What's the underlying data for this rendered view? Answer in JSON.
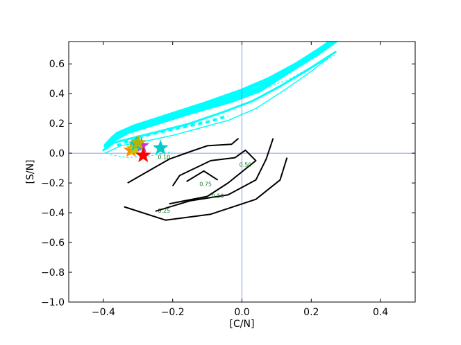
{
  "chart_data": {
    "type": "line",
    "title": "",
    "xlabel": "[C/N]",
    "ylabel": "[S/N]",
    "xlim": [
      -0.5,
      0.5
    ],
    "ylim": [
      -1.0,
      0.75
    ],
    "xticks": [
      -0.4,
      -0.2,
      0.0,
      0.2,
      0.4
    ],
    "xtick_labels": [
      "−0.4",
      "−0.2",
      "0.0",
      "0.2",
      "0.4"
    ],
    "yticks": [
      -1.0,
      -0.8,
      -0.6,
      -0.4,
      -0.2,
      0.0,
      0.2,
      0.4,
      0.6
    ],
    "ytick_labels": [
      "−1.0",
      "−0.8",
      "−0.6",
      "−0.4",
      "−0.2",
      "0.0",
      "0.2",
      "0.4",
      "0.6"
    ],
    "grid": false,
    "reference_lines": {
      "x": 0.0,
      "y": 0.0,
      "color": "#5b7cf0"
    },
    "contours": [
      {
        "level": "0.75",
        "points": [
          [
            -0.16,
            -0.19
          ],
          [
            -0.11,
            -0.12
          ],
          [
            -0.07,
            -0.18
          ]
        ],
        "label_at": [
          -0.105,
          -0.22
        ]
      },
      {
        "level": "0.50",
        "points": [
          [
            -0.2,
            -0.22
          ],
          [
            -0.18,
            -0.15
          ],
          [
            -0.09,
            -0.05
          ],
          [
            -0.02,
            -0.03
          ],
          [
            0.01,
            0.02
          ],
          [
            0.04,
            -0.05
          ],
          [
            -0.04,
            -0.2
          ],
          [
            -0.1,
            -0.29
          ],
          [
            -0.21,
            -0.34
          ]
        ],
        "label_at": [
          0.01,
          -0.09
        ]
      },
      {
        "level": "0.25",
        "points": [
          [
            -0.33,
            -0.2
          ],
          [
            -0.27,
            -0.12
          ],
          [
            -0.21,
            -0.04
          ],
          [
            -0.15,
            0.01
          ],
          [
            -0.1,
            0.05
          ],
          [
            -0.03,
            0.06
          ],
          [
            -0.01,
            0.1
          ]
        ],
        "label_at": [
          -0.225,
          -0.4
        ]
      },
      {
        "level": "0.25",
        "points": [
          [
            -0.25,
            -0.39
          ],
          [
            -0.15,
            -0.32
          ],
          [
            -0.04,
            -0.28
          ],
          [
            0.04,
            -0.18
          ],
          [
            0.07,
            -0.04
          ],
          [
            0.09,
            0.1
          ]
        ],
        "label_at": null
      },
      {
        "level": "0.10",
        "points": [
          [
            -0.34,
            -0.36
          ],
          [
            -0.22,
            -0.45
          ],
          [
            -0.09,
            -0.41
          ],
          [
            0.04,
            -0.31
          ],
          [
            0.11,
            -0.18
          ],
          [
            0.13,
            -0.03
          ]
        ],
        "label_at": [
          -0.07,
          -0.3
        ]
      },
      {
        "level": "0.10",
        "points": [],
        "label_at": [
          -0.225,
          -0.04
        ]
      }
    ],
    "tracks": [
      {
        "points": [
          [
            -0.39,
            0.05
          ],
          [
            -0.37,
            0.1
          ],
          [
            -0.33,
            0.15
          ],
          [
            -0.26,
            0.2
          ],
          [
            -0.15,
            0.28
          ],
          [
            -0.03,
            0.36
          ],
          [
            0.05,
            0.43
          ],
          [
            0.13,
            0.55
          ],
          [
            0.22,
            0.68
          ],
          [
            0.28,
            0.78
          ]
        ],
        "width": 9
      },
      {
        "points": [
          [
            -0.39,
            0.06
          ],
          [
            -0.36,
            0.13
          ],
          [
            -0.31,
            0.18
          ],
          [
            -0.23,
            0.24
          ],
          [
            -0.11,
            0.33
          ],
          [
            0.0,
            0.42
          ],
          [
            0.08,
            0.5
          ],
          [
            0.16,
            0.6
          ],
          [
            0.24,
            0.72
          ],
          [
            0.3,
            0.8
          ]
        ],
        "width": 6
      },
      {
        "points": [
          [
            -0.4,
            0.02
          ],
          [
            -0.37,
            0.07
          ],
          [
            -0.32,
            0.1
          ],
          [
            -0.25,
            0.14
          ],
          [
            -0.15,
            0.2
          ],
          [
            -0.05,
            0.28
          ],
          [
            0.03,
            0.35
          ],
          [
            0.11,
            0.45
          ],
          [
            0.19,
            0.56
          ],
          [
            0.27,
            0.68
          ]
        ],
        "width": 3
      },
      {
        "points": [
          [
            -0.395,
            0.0
          ],
          [
            -0.35,
            0.05
          ],
          [
            -0.28,
            0.08
          ],
          [
            -0.2,
            0.12
          ],
          [
            -0.12,
            0.17
          ],
          [
            -0.04,
            0.22
          ],
          [
            0.04,
            0.3
          ],
          [
            0.12,
            0.42
          ],
          [
            0.2,
            0.55
          ],
          [
            0.26,
            0.66
          ]
        ],
        "width": 1.5
      }
    ],
    "dashed_tracks": [
      {
        "points": [
          [
            -0.36,
            0.05
          ],
          [
            -0.32,
            0.09
          ],
          [
            -0.26,
            0.13
          ],
          [
            -0.18,
            0.17
          ],
          [
            -0.1,
            0.21
          ],
          [
            -0.04,
            0.25
          ]
        ],
        "width": 4
      },
      {
        "points": [
          [
            -0.38,
            -0.01
          ],
          [
            -0.33,
            -0.03
          ],
          [
            -0.27,
            -0.02
          ],
          [
            -0.2,
            0.01
          ]
        ],
        "width": 1.2
      },
      {
        "points": [
          [
            0.08,
            0.45
          ],
          [
            0.14,
            0.5
          ],
          [
            0.2,
            0.58
          ],
          [
            0.24,
            0.62
          ],
          [
            0.27,
            0.66
          ]
        ],
        "width": 1.2
      }
    ],
    "stars": [
      {
        "x": -0.29,
        "y": 0.05,
        "color": "#cc33cc"
      },
      {
        "x": -0.32,
        "y": 0.02,
        "color": "#ff8c00"
      },
      {
        "x": -0.31,
        "y": 0.03,
        "color": "#c8c800"
      },
      {
        "x": -0.305,
        "y": 0.06,
        "color": "#00cccc"
      },
      {
        "x": -0.235,
        "y": 0.035,
        "color": "#00cccc"
      },
      {
        "x": -0.3,
        "y": 0.07,
        "color": "#b5b500"
      },
      {
        "x": -0.285,
        "y": -0.015,
        "color": "#ff0000"
      }
    ],
    "colors": {
      "track": "#00ffff",
      "contour": "#000000",
      "contour_label": "#1a7a1a"
    }
  }
}
